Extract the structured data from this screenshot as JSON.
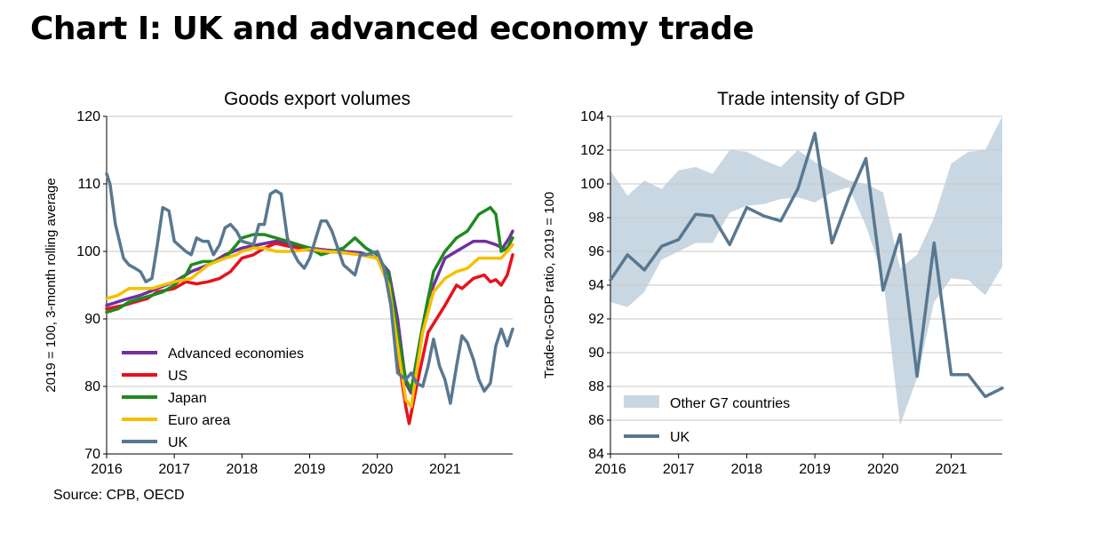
{
  "title": "Chart I: UK and advanced economy trade",
  "source": "Source: CPB, OECD",
  "colors": {
    "advanced": "#7030a0",
    "us": "#e8111d",
    "japan": "#1f8a1f",
    "euro": "#f5c000",
    "uk": "#587890",
    "g7_band": "#c9d7e2",
    "grid": "#c8c8c8"
  },
  "chart_data": [
    {
      "type": "line",
      "title": "Goods export volumes",
      "xlabel": "",
      "ylabel": "2019 = 100, 3-month rolling average",
      "xlim": [
        2016,
        2022
      ],
      "ylim": [
        70,
        120
      ],
      "yticks": [
        70,
        80,
        90,
        100,
        110,
        120
      ],
      "xticks": [
        "2016",
        "2017",
        "2018",
        "2019",
        "2020",
        "2021"
      ],
      "grid": true,
      "legend": "bottom-left",
      "series": [
        {
          "name": "Advanced economies",
          "color_key": "advanced",
          "points": [
            [
              2016.0,
              92
            ],
            [
              2016.25,
              92.8
            ],
            [
              2016.5,
              93.5
            ],
            [
              2016.75,
              94.5
            ],
            [
              2017.0,
              95.5
            ],
            [
              2017.25,
              97
            ],
            [
              2017.5,
              98
            ],
            [
              2017.75,
              99.5
            ],
            [
              2018.0,
              100.5
            ],
            [
              2018.25,
              101
            ],
            [
              2018.5,
              101.5
            ],
            [
              2018.75,
              101
            ],
            [
              2019.0,
              100.5
            ],
            [
              2019.25,
              100.2
            ],
            [
              2019.5,
              100
            ],
            [
              2019.75,
              99.8
            ],
            [
              2020.0,
              99
            ],
            [
              2020.17,
              97
            ],
            [
              2020.3,
              90
            ],
            [
              2020.42,
              80.5
            ],
            [
              2020.5,
              79
            ],
            [
              2020.6,
              85
            ],
            [
              2020.75,
              93
            ],
            [
              2021.0,
              99
            ],
            [
              2021.25,
              100.5
            ],
            [
              2021.42,
              101.5
            ],
            [
              2021.6,
              101.5
            ],
            [
              2021.75,
              101
            ],
            [
              2021.85,
              100.5
            ],
            [
              2021.95,
              102
            ],
            [
              2022.0,
              103
            ]
          ]
        },
        {
          "name": "US",
          "color_key": "us",
          "points": [
            [
              2016.0,
              91.5
            ],
            [
              2016.25,
              92
            ],
            [
              2016.42,
              92.5
            ],
            [
              2016.6,
              93
            ],
            [
              2016.75,
              94
            ],
            [
              2017.0,
              94.5
            ],
            [
              2017.17,
              95.5
            ],
            [
              2017.33,
              95.2
            ],
            [
              2017.5,
              95.5
            ],
            [
              2017.67,
              96
            ],
            [
              2017.83,
              97
            ],
            [
              2018.0,
              99
            ],
            [
              2018.17,
              99.5
            ],
            [
              2018.33,
              100.5
            ],
            [
              2018.5,
              101.2
            ],
            [
              2018.67,
              100.8
            ],
            [
              2018.83,
              100.5
            ],
            [
              2019.0,
              100.2
            ],
            [
              2019.25,
              100
            ],
            [
              2019.5,
              99.8
            ],
            [
              2019.75,
              99.5
            ],
            [
              2020.0,
              99
            ],
            [
              2020.17,
              95
            ],
            [
              2020.3,
              85
            ],
            [
              2020.42,
              77
            ],
            [
              2020.47,
              74.5
            ],
            [
              2020.58,
              80
            ],
            [
              2020.75,
              88
            ],
            [
              2021.0,
              92
            ],
            [
              2021.17,
              95
            ],
            [
              2021.25,
              94.5
            ],
            [
              2021.42,
              96
            ],
            [
              2021.58,
              96.5
            ],
            [
              2021.67,
              95.5
            ],
            [
              2021.75,
              95.8
            ],
            [
              2021.83,
              95
            ],
            [
              2021.92,
              96.5
            ],
            [
              2022.0,
              99.5
            ]
          ]
        },
        {
          "name": "Japan",
          "color_key": "japan",
          "points": [
            [
              2016.0,
              91
            ],
            [
              2016.17,
              91.5
            ],
            [
              2016.33,
              92.5
            ],
            [
              2016.5,
              93
            ],
            [
              2016.67,
              93.5
            ],
            [
              2016.83,
              94
            ],
            [
              2017.0,
              95
            ],
            [
              2017.17,
              96.5
            ],
            [
              2017.25,
              98
            ],
            [
              2017.42,
              98.5
            ],
            [
              2017.58,
              98.5
            ],
            [
              2017.75,
              99
            ],
            [
              2017.92,
              101
            ],
            [
              2018.0,
              102
            ],
            [
              2018.17,
              102.5
            ],
            [
              2018.33,
              102.5
            ],
            [
              2018.5,
              102
            ],
            [
              2018.67,
              101.5
            ],
            [
              2018.83,
              101
            ],
            [
              2019.0,
              100.5
            ],
            [
              2019.17,
              99.5
            ],
            [
              2019.33,
              100
            ],
            [
              2019.5,
              100.5
            ],
            [
              2019.67,
              102
            ],
            [
              2019.83,
              100.5
            ],
            [
              2020.0,
              99.5
            ],
            [
              2020.17,
              96.5
            ],
            [
              2020.3,
              88
            ],
            [
              2020.42,
              81
            ],
            [
              2020.5,
              79.5
            ],
            [
              2020.67,
              89
            ],
            [
              2020.83,
              97
            ],
            [
              2021.0,
              100
            ],
            [
              2021.17,
              102
            ],
            [
              2021.33,
              103
            ],
            [
              2021.5,
              105.5
            ],
            [
              2021.67,
              106.5
            ],
            [
              2021.75,
              105.5
            ],
            [
              2021.83,
              100
            ],
            [
              2021.92,
              100.5
            ],
            [
              2022.0,
              102
            ]
          ]
        },
        {
          "name": "Euro area",
          "color_key": "euro",
          "points": [
            [
              2016.0,
              93
            ],
            [
              2016.17,
              93.5
            ],
            [
              2016.33,
              94.5
            ],
            [
              2016.5,
              94.5
            ],
            [
              2016.67,
              94.5
            ],
            [
              2016.83,
              95
            ],
            [
              2017.0,
              95.5
            ],
            [
              2017.25,
              96
            ],
            [
              2017.5,
              98
            ],
            [
              2017.75,
              99
            ],
            [
              2017.92,
              99.5
            ],
            [
              2018.0,
              100
            ],
            [
              2018.17,
              100.5
            ],
            [
              2018.33,
              100.5
            ],
            [
              2018.5,
              100
            ],
            [
              2018.75,
              100
            ],
            [
              2019.0,
              100.3
            ],
            [
              2019.25,
              100
            ],
            [
              2019.5,
              99.8
            ],
            [
              2019.75,
              99.5
            ],
            [
              2020.0,
              99
            ],
            [
              2020.17,
              95
            ],
            [
              2020.3,
              86
            ],
            [
              2020.42,
              78
            ],
            [
              2020.5,
              77
            ],
            [
              2020.67,
              88
            ],
            [
              2020.83,
              94
            ],
            [
              2021.0,
              96
            ],
            [
              2021.17,
              97
            ],
            [
              2021.33,
              97.5
            ],
            [
              2021.5,
              99
            ],
            [
              2021.67,
              99
            ],
            [
              2021.83,
              99
            ],
            [
              2021.92,
              100
            ],
            [
              2022.0,
              101
            ]
          ]
        },
        {
          "name": "UK",
          "color_key": "uk",
          "points": [
            [
              2016.0,
              111.5
            ],
            [
              2016.05,
              110
            ],
            [
              2016.13,
              104
            ],
            [
              2016.25,
              99
            ],
            [
              2016.33,
              98
            ],
            [
              2016.42,
              97.5
            ],
            [
              2016.5,
              97
            ],
            [
              2016.58,
              95.5
            ],
            [
              2016.67,
              96
            ],
            [
              2016.75,
              101
            ],
            [
              2016.83,
              106.5
            ],
            [
              2016.92,
              106
            ],
            [
              2017.0,
              101.5
            ],
            [
              2017.17,
              100
            ],
            [
              2017.25,
              99.5
            ],
            [
              2017.33,
              102
            ],
            [
              2017.42,
              101.5
            ],
            [
              2017.5,
              101.5
            ],
            [
              2017.58,
              99.5
            ],
            [
              2017.67,
              101
            ],
            [
              2017.75,
              103.5
            ],
            [
              2017.83,
              104
            ],
            [
              2017.92,
              103
            ],
            [
              2018.0,
              101.5
            ],
            [
              2018.17,
              101
            ],
            [
              2018.25,
              104
            ],
            [
              2018.33,
              104
            ],
            [
              2018.42,
              108.5
            ],
            [
              2018.5,
              109
            ],
            [
              2018.58,
              108.5
            ],
            [
              2018.67,
              102
            ],
            [
              2018.75,
              100
            ],
            [
              2018.83,
              98.5
            ],
            [
              2018.92,
              97.5
            ],
            [
              2019.0,
              99
            ],
            [
              2019.17,
              104.5
            ],
            [
              2019.25,
              104.5
            ],
            [
              2019.33,
              103
            ],
            [
              2019.5,
              98
            ],
            [
              2019.67,
              96.5
            ],
            [
              2019.75,
              99.5
            ],
            [
              2019.83,
              99.5
            ],
            [
              2020.0,
              100
            ],
            [
              2020.1,
              97.5
            ],
            [
              2020.2,
              92
            ],
            [
              2020.3,
              82
            ],
            [
              2020.42,
              81
            ],
            [
              2020.5,
              82
            ],
            [
              2020.58,
              80.5
            ],
            [
              2020.67,
              80
            ],
            [
              2020.75,
              83
            ],
            [
              2020.83,
              87
            ],
            [
              2020.92,
              83
            ],
            [
              2021.0,
              81
            ],
            [
              2021.08,
              77.5
            ],
            [
              2021.17,
              83
            ],
            [
              2021.25,
              87.5
            ],
            [
              2021.33,
              86.5
            ],
            [
              2021.42,
              84
            ],
            [
              2021.5,
              81
            ],
            [
              2021.58,
              79.3
            ],
            [
              2021.67,
              80.5
            ],
            [
              2021.75,
              86
            ],
            [
              2021.83,
              88.5
            ],
            [
              2021.92,
              86
            ],
            [
              2022.0,
              88.5
            ]
          ]
        }
      ]
    },
    {
      "type": "line",
      "title": "Trade intensity of GDP",
      "xlabel": "",
      "ylabel": "Trade-to-GDP ratio, 2019 = 100",
      "xlim": [
        2016,
        2021.75
      ],
      "ylim": [
        84,
        104
      ],
      "yticks": [
        84,
        86,
        88,
        90,
        92,
        94,
        96,
        98,
        100,
        102,
        104
      ],
      "xticks": [
        "2016",
        "2017",
        "2018",
        "2019",
        "2020",
        "2021"
      ],
      "grid": true,
      "legend": "bottom-left",
      "band": {
        "name": "Other G7 countries",
        "color_key": "g7_band",
        "x": [
          2016,
          2016.25,
          2016.5,
          2016.75,
          2017,
          2017.25,
          2017.5,
          2017.75,
          2018,
          2018.25,
          2018.5,
          2018.75,
          2019,
          2019.25,
          2019.5,
          2019.75,
          2020,
          2020.25,
          2020.5,
          2020.75,
          2021,
          2021.25,
          2021.5,
          2021.75
        ],
        "upper": [
          100.8,
          99.3,
          100.2,
          99.7,
          100.8,
          101,
          100.6,
          102,
          101.9,
          101.4,
          101,
          102,
          101.3,
          100.7,
          100.2,
          100,
          99.5,
          95,
          95.8,
          98,
          101.2,
          101.9,
          102,
          104
        ],
        "lower": [
          93,
          92.7,
          93.6,
          95.5,
          96,
          96.5,
          96.5,
          98.3,
          98.7,
          98.8,
          99.1,
          99.2,
          98.9,
          99.5,
          99.8,
          97.5,
          94.5,
          85.7,
          88.5,
          93,
          94.4,
          94.3,
          93.4,
          95.1
        ]
      },
      "series": [
        {
          "name": "UK",
          "color_key": "uk",
          "points": [
            [
              2016,
              94.3
            ],
            [
              2016.25,
              95.8
            ],
            [
              2016.5,
              94.9
            ],
            [
              2016.75,
              96.3
            ],
            [
              2017,
              96.7
            ],
            [
              2017.25,
              98.2
            ],
            [
              2017.5,
              98.1
            ],
            [
              2017.75,
              96.4
            ],
            [
              2018,
              98.6
            ],
            [
              2018.25,
              98.1
            ],
            [
              2018.5,
              97.8
            ],
            [
              2018.75,
              99.7
            ],
            [
              2019,
              103
            ],
            [
              2019.25,
              96.5
            ],
            [
              2019.5,
              99.2
            ],
            [
              2019.75,
              101.5
            ],
            [
              2020,
              93.7
            ],
            [
              2020.25,
              97
            ],
            [
              2020.5,
              88.6
            ],
            [
              2020.75,
              96.5
            ],
            [
              2021,
              88.7
            ],
            [
              2021.25,
              88.7
            ],
            [
              2021.5,
              87.4
            ],
            [
              2021.75,
              87.9
            ]
          ]
        }
      ]
    }
  ]
}
